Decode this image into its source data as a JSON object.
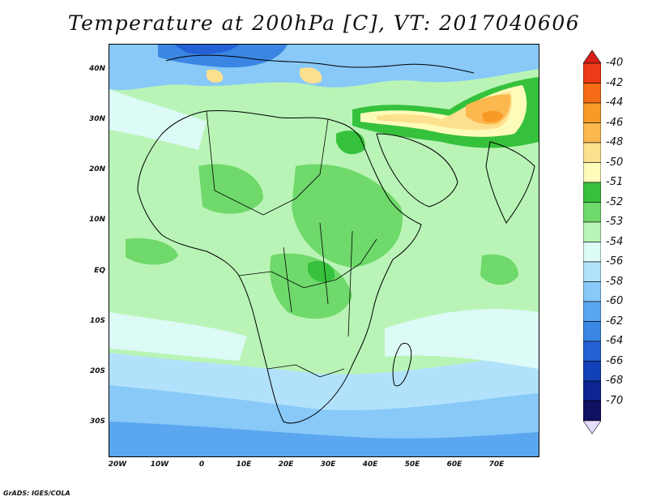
{
  "title": "Temperature at 200hPa [C], VT: 2017040606",
  "footer": "GrADS: IGES/COLA",
  "axes": {
    "lat_labels": [
      "40N",
      "30N",
      "20N",
      "10N",
      "EQ",
      "10S",
      "20S",
      "30S"
    ],
    "lon_labels": [
      "20W",
      "10W",
      "0",
      "10E",
      "20E",
      "30E",
      "40E",
      "50E",
      "60E",
      "70E"
    ]
  },
  "colorbar": {
    "levels": [
      "-40",
      "-42",
      "-44",
      "-46",
      "-48",
      "-50",
      "-51",
      "-52",
      "-53",
      "-54",
      "-56",
      "-58",
      "-60",
      "-62",
      "-64",
      "-66",
      "-68",
      "-70"
    ],
    "colors": [
      "#d42016",
      "#ee3a16",
      "#f66b16",
      "#f99a26",
      "#fbb84e",
      "#fde08e",
      "#fdfbba",
      "#36c13c",
      "#6fd96b",
      "#b9f4b6",
      "#dcfaf6",
      "#b2e2fb",
      "#88c9f8",
      "#5aa6ef",
      "#3b86e3",
      "#2461d5",
      "#1342b8",
      "#0c2591",
      "#101162",
      "#e6dcfb"
    ]
  },
  "colors": {
    "land_line": "#000000",
    "background": "#b9f4b6"
  }
}
